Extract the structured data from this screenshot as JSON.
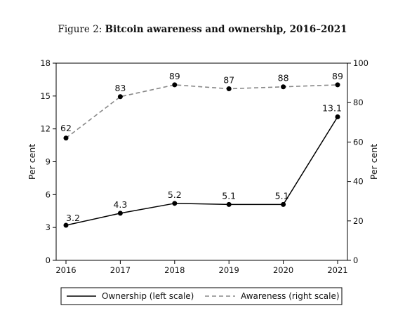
{
  "caption": {
    "prefix": "Figure 2:",
    "title": "Bitcoin awareness and ownership, 2016–2021"
  },
  "chart_data": {
    "type": "line",
    "x": [
      "2016",
      "2017",
      "2018",
      "2019",
      "2020",
      "2021"
    ],
    "y_left": {
      "label": "Per cent",
      "ylim": [
        0,
        18
      ],
      "ticks": [
        0,
        3,
        6,
        9,
        12,
        15,
        18
      ]
    },
    "y_right": {
      "label": "Per cent",
      "ylim": [
        0,
        100
      ],
      "ticks": [
        0,
        20,
        40,
        60,
        80,
        100
      ]
    },
    "series": [
      {
        "name": "Ownership (left scale)",
        "axis": "left",
        "style": "solid",
        "color": "#000000",
        "values": [
          3.2,
          4.3,
          5.2,
          5.1,
          5.1,
          13.1
        ],
        "labels": [
          "3.2",
          "4.3",
          "5.2",
          "5.1",
          "5.1",
          "13.1"
        ]
      },
      {
        "name": "Awareness (right scale)",
        "axis": "right",
        "style": "dashed",
        "color": "#888888",
        "values": [
          62,
          83,
          89,
          87,
          88,
          89
        ],
        "labels": [
          "62",
          "83",
          "89",
          "87",
          "88",
          "89"
        ]
      }
    ],
    "legend_position": "bottom",
    "grid": false
  }
}
